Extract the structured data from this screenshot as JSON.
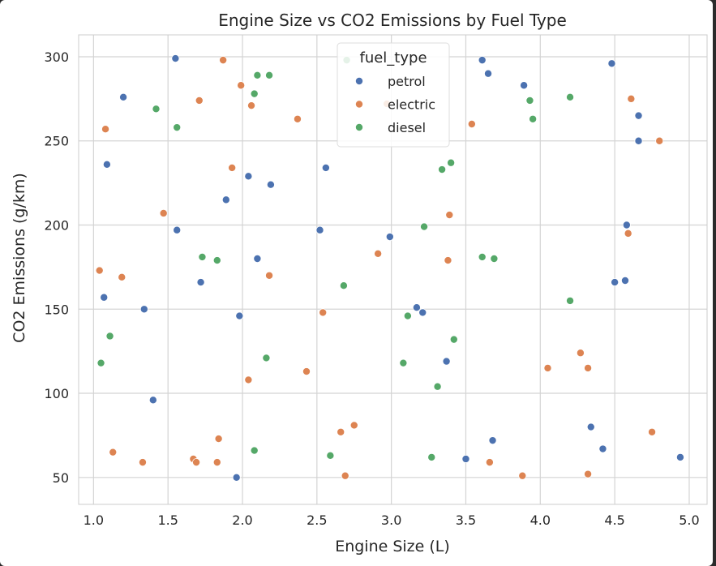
{
  "chart_data": {
    "type": "scatter",
    "title": "Engine Size vs CO2 Emissions by Fuel Type",
    "xlabel": "Engine Size (L)",
    "ylabel": "CO2 Emissions (g/km)",
    "xlim": [
      0.9,
      5.12
    ],
    "ylim": [
      34,
      313
    ],
    "xticks": [
      1.0,
      1.5,
      2.0,
      2.5,
      3.0,
      3.5,
      4.0,
      4.5,
      5.0
    ],
    "xtick_labels": [
      "1.0",
      "1.5",
      "2.0",
      "2.5",
      "3.0",
      "3.5",
      "4.0",
      "4.5",
      "5.0"
    ],
    "yticks": [
      50,
      100,
      150,
      200,
      250,
      300
    ],
    "ytick_labels": [
      "50",
      "100",
      "150",
      "200",
      "250",
      "300"
    ],
    "grid": true,
    "legend": {
      "title": "fuel_type",
      "placement": "top-center"
    },
    "series": [
      {
        "name": "petrol",
        "color": "#4c72b0",
        "points": [
          [
            1.55,
            299
          ],
          [
            1.2,
            276
          ],
          [
            1.09,
            236
          ],
          [
            1.56,
            197
          ],
          [
            1.07,
            157
          ],
          [
            1.34,
            150
          ],
          [
            1.72,
            166
          ],
          [
            1.89,
            215
          ],
          [
            2.04,
            229
          ],
          [
            2.19,
            224
          ],
          [
            1.98,
            146
          ],
          [
            2.1,
            180
          ],
          [
            1.4,
            96
          ],
          [
            1.96,
            50
          ],
          [
            2.56,
            234
          ],
          [
            2.52,
            197
          ],
          [
            2.99,
            193
          ],
          [
            3.17,
            151
          ],
          [
            3.21,
            148
          ],
          [
            3.37,
            119
          ],
          [
            3.61,
            298
          ],
          [
            3.65,
            290
          ],
          [
            3.89,
            283
          ],
          [
            3.68,
            72
          ],
          [
            3.5,
            61
          ],
          [
            4.48,
            296
          ],
          [
            4.66,
            265
          ],
          [
            4.66,
            250
          ],
          [
            4.58,
            200
          ],
          [
            4.5,
            166
          ],
          [
            4.57,
            167
          ],
          [
            4.34,
            80
          ],
          [
            4.42,
            67
          ],
          [
            4.94,
            62
          ]
        ]
      },
      {
        "name": "electric",
        "color": "#dd8452",
        "points": [
          [
            1.08,
            257
          ],
          [
            1.04,
            173
          ],
          [
            1.19,
            169
          ],
          [
            1.47,
            207
          ],
          [
            1.71,
            274
          ],
          [
            1.87,
            298
          ],
          [
            1.99,
            283
          ],
          [
            2.06,
            271
          ],
          [
            1.93,
            234
          ],
          [
            2.18,
            170
          ],
          [
            2.37,
            263
          ],
          [
            2.04,
            108
          ],
          [
            2.43,
            113
          ],
          [
            1.13,
            65
          ],
          [
            1.33,
            59
          ],
          [
            1.67,
            61
          ],
          [
            1.69,
            59
          ],
          [
            1.83,
            59
          ],
          [
            1.84,
            73
          ],
          [
            2.54,
            148
          ],
          [
            2.91,
            183
          ],
          [
            2.66,
            77
          ],
          [
            2.75,
            81
          ],
          [
            2.69,
            51
          ],
          [
            2.97,
            272
          ],
          [
            3.54,
            260
          ],
          [
            3.39,
            206
          ],
          [
            3.38,
            179
          ],
          [
            3.66,
            59
          ],
          [
            3.88,
            51
          ],
          [
            4.61,
            275
          ],
          [
            4.8,
            250
          ],
          [
            4.59,
            195
          ],
          [
            4.27,
            124
          ],
          [
            4.05,
            115
          ],
          [
            4.32,
            115
          ],
          [
            4.75,
            77
          ],
          [
            4.32,
            52
          ]
        ]
      },
      {
        "name": "diesel",
        "color": "#55a868",
        "points": [
          [
            1.42,
            269
          ],
          [
            1.56,
            258
          ],
          [
            1.73,
            181
          ],
          [
            1.83,
            179
          ],
          [
            1.11,
            134
          ],
          [
            1.05,
            118
          ],
          [
            2.1,
            289
          ],
          [
            2.18,
            289
          ],
          [
            2.08,
            278
          ],
          [
            2.16,
            121
          ],
          [
            2.08,
            66
          ],
          [
            2.68,
            164
          ],
          [
            2.59,
            63
          ],
          [
            2.7,
            298
          ],
          [
            3.4,
            237
          ],
          [
            3.34,
            233
          ],
          [
            3.22,
            199
          ],
          [
            3.61,
            181
          ],
          [
            3.69,
            180
          ],
          [
            3.11,
            146
          ],
          [
            3.42,
            132
          ],
          [
            3.08,
            118
          ],
          [
            3.31,
            104
          ],
          [
            3.27,
            62
          ],
          [
            3.93,
            274
          ],
          [
            3.95,
            263
          ],
          [
            4.2,
            276
          ],
          [
            4.2,
            155
          ]
        ]
      }
    ]
  }
}
